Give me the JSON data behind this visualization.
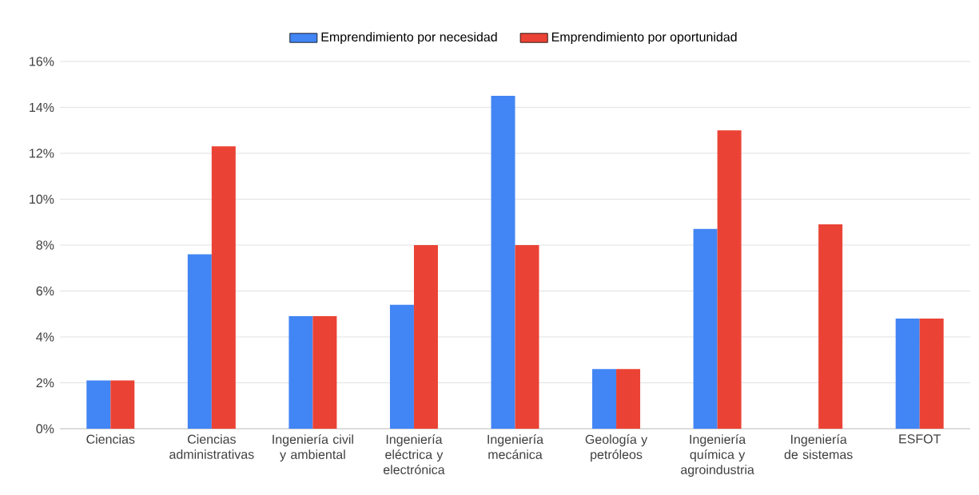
{
  "chart_data": {
    "type": "bar",
    "categories": [
      "Ciencias",
      "Ciencias administrativas",
      "Ingeniería civil y ambiental",
      "Ingeniería eléctrica y electrónica",
      "Ingeniería mecánica",
      "Geología y petróleos",
      "Ingeniería química y agroindustria",
      "Ingeniería de sistemas",
      "ESFOT"
    ],
    "series": [
      {
        "name": "Emprendimiento por necesidad",
        "color": "#4285f4",
        "values": [
          2.1,
          7.6,
          4.9,
          5.4,
          14.5,
          2.6,
          8.7,
          0,
          4.8
        ]
      },
      {
        "name": "Emprendimiento por oportunidad",
        "color": "#ea4335",
        "values": [
          2.1,
          12.3,
          4.9,
          8.0,
          8.0,
          2.6,
          13.0,
          8.9,
          4.8
        ]
      }
    ],
    "ylim": [
      0,
      16
    ],
    "yticks": [
      {
        "value": 0,
        "label": "0%"
      },
      {
        "value": 2,
        "label": "2%"
      },
      {
        "value": 4,
        "label": "4%"
      },
      {
        "value": 6,
        "label": "6%"
      },
      {
        "value": 8,
        "label": "8%"
      },
      {
        "value": 10,
        "label": "10%"
      },
      {
        "value": 12,
        "label": "12%"
      },
      {
        "value": 14,
        "label": "14%"
      },
      {
        "value": 16,
        "label": "16%"
      }
    ],
    "grid": "y",
    "legend": "top"
  }
}
